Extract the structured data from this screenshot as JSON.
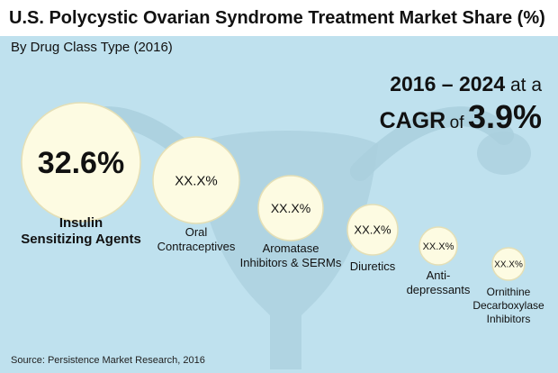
{
  "title": "U.S. Polycystic Ovarian Syndrome Treatment Market Share (%)",
  "subtitle": "By Drug Class Type (2016)",
  "cagr": {
    "period": "2016 – 2024",
    "at_a": "at a",
    "label": "CAGR",
    "of": "of",
    "value": "3.9%"
  },
  "source": "Source: Persistence Market Research, 2016",
  "colors": {
    "background": "#bfe1ee",
    "bubble": "#fdfbe2",
    "bubble_edge": "#e4dfb6",
    "decor": "#a9cfdd"
  },
  "chart_data": {
    "type": "bubble",
    "title": "U.S. Polycystic Ovarian Syndrome Treatment Market Share (%)",
    "subtitle": "By Drug Class Type (2016)",
    "unit": "%",
    "categories": [
      "Insulin Sensitizing Agents",
      "Oral Contraceptives",
      "Aromatase Inhibitors & SERMs",
      "Diuretics",
      "Anti-depressants",
      "Ornithine Decarboxylase Inhibitors"
    ],
    "labels": [
      "32.6%",
      "XX.X%",
      "XX.X%",
      "XX.X%",
      "XX.X%",
      "XX.X%"
    ],
    "values": [
      32.6,
      null,
      null,
      null,
      null,
      null
    ],
    "size_rank": [
      1,
      2,
      3,
      4,
      5,
      6
    ],
    "category_lines": [
      [
        "Insulin",
        "Sensitizing Agents"
      ],
      [
        "Oral",
        "Contraceptives"
      ],
      [
        "Aromatase",
        "Inhibitors & SERMs"
      ],
      [
        "Diuretics"
      ],
      [
        "Anti-",
        "depressants"
      ],
      [
        "Ornithine",
        "Decarboxylase",
        "Inhibitors"
      ]
    ]
  }
}
